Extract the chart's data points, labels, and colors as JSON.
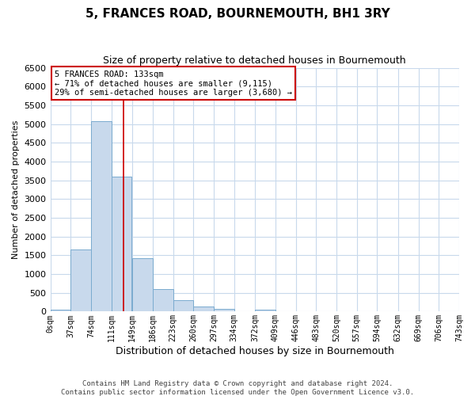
{
  "title": "5, FRANCES ROAD, BOURNEMOUTH, BH1 3RY",
  "subtitle": "Size of property relative to detached houses in Bournemouth",
  "xlabel": "Distribution of detached houses by size in Bournemouth",
  "ylabel": "Number of detached properties",
  "footnote1": "Contains HM Land Registry data © Crown copyright and database right 2024.",
  "footnote2": "Contains public sector information licensed under the Open Government Licence v3.0.",
  "bar_left_edges": [
    0,
    37,
    74,
    111,
    149,
    186,
    223,
    260,
    297,
    334,
    372,
    409,
    446,
    483,
    520,
    557,
    594,
    632,
    669,
    706
  ],
  "bar_heights": [
    50,
    1650,
    5070,
    3600,
    1420,
    610,
    300,
    140,
    70,
    10,
    50,
    0,
    0,
    0,
    0,
    0,
    0,
    0,
    0,
    0
  ],
  "bin_width": 37,
  "bar_color": "#c8d9ec",
  "bar_edgecolor": "#7aabcf",
  "x_tick_labels": [
    "0sqm",
    "37sqm",
    "74sqm",
    "111sqm",
    "149sqm",
    "186sqm",
    "223sqm",
    "260sqm",
    "297sqm",
    "334sqm",
    "372sqm",
    "409sqm",
    "446sqm",
    "483sqm",
    "520sqm",
    "557sqm",
    "594sqm",
    "632sqm",
    "669sqm",
    "706sqm",
    "743sqm"
  ],
  "ylim": [
    0,
    6500
  ],
  "yticks": [
    0,
    500,
    1000,
    1500,
    2000,
    2500,
    3000,
    3500,
    4000,
    4500,
    5000,
    5500,
    6000,
    6500
  ],
  "xlim": [
    0,
    743
  ],
  "property_line_x": 133,
  "property_line_color": "#cc0000",
  "annotation_box_text": "5 FRANCES ROAD: 133sqm\n← 71% of detached houses are smaller (9,115)\n29% of semi-detached houses are larger (3,680) →",
  "annotation_box_color": "#cc0000",
  "grid_color": "#c8d9ec",
  "bg_color": "#ffffff",
  "title_fontsize": 11,
  "subtitle_fontsize": 9,
  "ylabel_fontsize": 8,
  "xlabel_fontsize": 9,
  "ytick_fontsize": 8,
  "xtick_fontsize": 7,
  "annot_fontsize": 7.5,
  "footnote_fontsize": 6.5
}
